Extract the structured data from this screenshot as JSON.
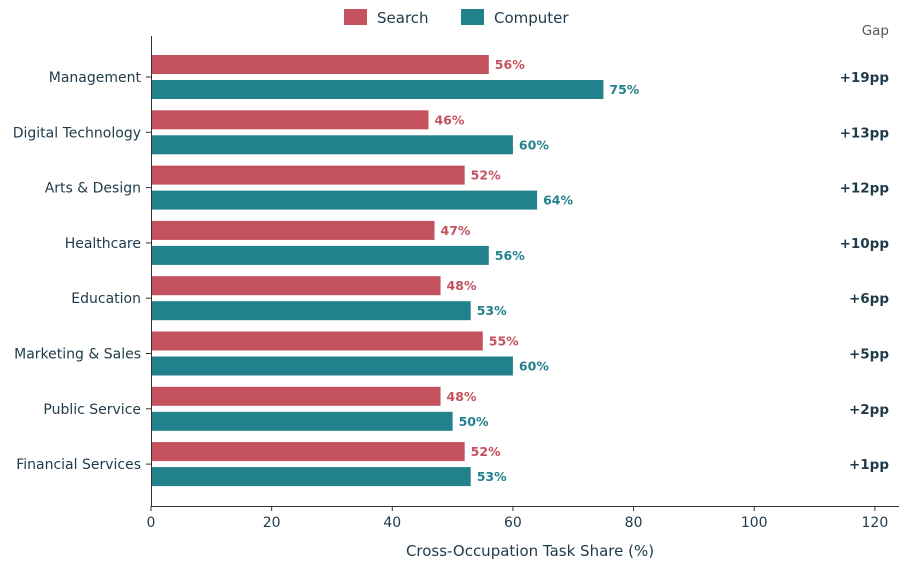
{
  "chart_data": {
    "type": "bar",
    "orientation": "horizontal",
    "categories": [
      "Management",
      "Digital Technology",
      "Arts & Design",
      "Healthcare",
      "Education",
      "Marketing & Sales",
      "Public Service",
      "Financial Services"
    ],
    "series": [
      {
        "name": "Search",
        "values": [
          56,
          46,
          52,
          47,
          48,
          55,
          48,
          52
        ],
        "labels": [
          "56%",
          "46%",
          "52%",
          "47%",
          "48%",
          "55%",
          "48%",
          "52%"
        ],
        "color": "#c4525e"
      },
      {
        "name": "Computer",
        "values": [
          75,
          60,
          64,
          56,
          53,
          60,
          50,
          53
        ],
        "labels": [
          "75%",
          "60%",
          "64%",
          "56%",
          "53%",
          "60%",
          "50%",
          "53%"
        ],
        "color": "#21828d"
      }
    ],
    "gap_header": "Gap",
    "gaps": [
      "+19pp",
      "+13pp",
      "+12pp",
      "+10pp",
      "+6pp",
      "+5pp",
      "+2pp",
      "+1pp"
    ],
    "xlabel": "Cross-Occupation Task Share (%)",
    "ylabel": "",
    "xlim": [
      0,
      124
    ],
    "xticks": [
      0,
      20,
      40,
      60,
      80,
      100,
      120
    ],
    "grid": false,
    "legend_position": "top-center"
  }
}
